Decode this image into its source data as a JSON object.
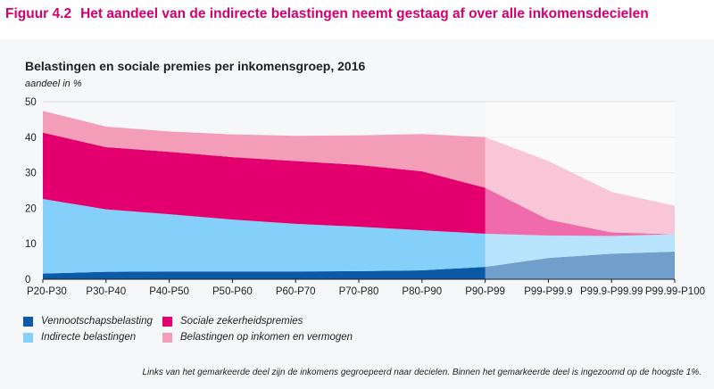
{
  "figure": {
    "number": "Figuur 4.2",
    "title": "Het aandeel van de indirecte belastingen neemt gestaag af over alle inkomensdecielen"
  },
  "footnote": "Links van het gemarkeerde deel zijn de inkomens gegroepeerd naar decielen. Binnen het gemarkeerde deel is ingezoomd op de hoogste 1%.",
  "colors": {
    "vennootschap": "#0a5aa8",
    "indirecte": "#85d0fb",
    "sociale": "#e3006e",
    "belastingen_inkomen": "#f39db9",
    "highlight_overlay": "#ffffff",
    "panel": "#f6f7f9",
    "title": "#d4006f"
  },
  "chart_data": {
    "type": "area",
    "stacked": true,
    "title": "Belastingen en sociale premies per inkomensgroep, 2016",
    "ylabel": "aandeel in %",
    "xlabel": "",
    "ylim": [
      0,
      50
    ],
    "yticks": [
      0,
      10,
      20,
      30,
      40,
      50
    ],
    "grid": true,
    "categories": [
      "P20-P30",
      "P30-P40",
      "P40-P50",
      "P50-P60",
      "P60-P70",
      "P70-P80",
      "P80-P90",
      "P90-P99",
      "P99-P99.9",
      "P99.9-P99.99",
      "P99.99-P100"
    ],
    "highlight_from_category": "P90-P99",
    "series": [
      {
        "name": "Vennootschapsbelasting",
        "color_key": "vennootschap",
        "values": [
          1.6,
          2.1,
          2.2,
          2.2,
          2.2,
          2.3,
          2.5,
          3.5,
          6.0,
          7.2,
          7.8
        ]
      },
      {
        "name": "Indirecte belastingen",
        "color_key": "indirecte",
        "values": [
          21.0,
          17.6,
          16.1,
          14.6,
          13.4,
          12.5,
          11.3,
          9.3,
          6.3,
          5.0,
          4.9
        ]
      },
      {
        "name": "Sociale zekerheidspremies",
        "color_key": "sociale",
        "values": [
          18.7,
          17.5,
          17.6,
          17.6,
          17.7,
          17.4,
          16.6,
          13.0,
          4.5,
          1.0,
          0.0
        ]
      },
      {
        "name": "Belastingen op inkomen en vermogen",
        "color_key": "belastingen_inkomen",
        "values": [
          6.1,
          5.8,
          5.7,
          6.4,
          7.1,
          8.3,
          10.5,
          14.2,
          16.5,
          11.4,
          8.0
        ]
      }
    ],
    "legend_position": "bottom-left"
  }
}
